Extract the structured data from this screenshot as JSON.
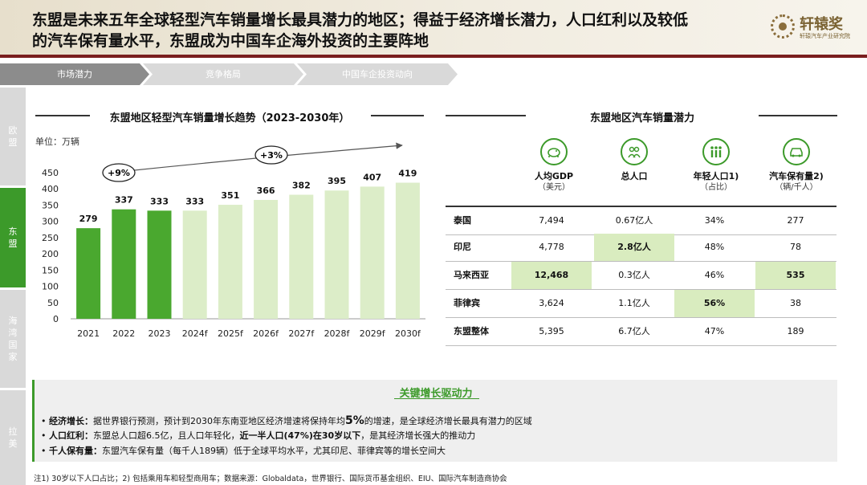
{
  "header": {
    "title_line1": "东盟是未来五年全球轻型汽车销量增长最具潜力的地区；得益于经济增长潜力，人口红利以及较低",
    "title_line2": "的汽车保有量水平，东盟成为中国车企海外投资的主要阵地",
    "logo_name": "轩辕奖",
    "logo_sub": "轩辕汽车产业研究院"
  },
  "tabs": [
    {
      "label": "市场潜力",
      "active": true
    },
    {
      "label": "竞争格局",
      "active": false
    },
    {
      "label": "中国车企投资动向",
      "active": false
    }
  ],
  "sidebar": [
    {
      "label": "欧盟",
      "active": false
    },
    {
      "label": "东盟",
      "active": true
    },
    {
      "label": "海湾国家",
      "active": false
    },
    {
      "label": "拉美",
      "active": false
    }
  ],
  "left_panel": {
    "title": "东盟地区轻型汽车销量增长趋势（2023-2030年）",
    "unit": "单位：万辆",
    "growth_labels": [
      "+9%",
      "+3%"
    ]
  },
  "chart_data": {
    "type": "bar",
    "title": "东盟地区轻型汽车销量增长趋势（2023-2030年）",
    "ylabel": "单位：万辆",
    "categories": [
      "2021",
      "2022",
      "2023",
      "2024f",
      "2025f",
      "2026f",
      "2027f",
      "2028f",
      "2029f",
      "2030f"
    ],
    "values": [
      279,
      337,
      333,
      333,
      351,
      366,
      382,
      395,
      407,
      419
    ],
    "ylim": [
      0,
      450
    ],
    "yticks": [
      0,
      50,
      100,
      150,
      200,
      250,
      300,
      350,
      400,
      450
    ],
    "grid": false,
    "colors": {
      "actual": "#4aa82f",
      "forecast": "#dcedc8"
    }
  },
  "right_panel": {
    "title": "东盟地区汽车销量潜力",
    "columns": [
      {
        "icon": "piggy-bank-icon",
        "label": "人均GDP",
        "sub": "（美元）"
      },
      {
        "icon": "people-icon",
        "label": "总人口",
        "sub": ""
      },
      {
        "icon": "young-people-icon",
        "label": "年轻人口1)",
        "sub": "（占比）"
      },
      {
        "icon": "car-icon",
        "label": "汽车保有量2)",
        "sub": "（辆/千人）"
      }
    ],
    "rows": [
      {
        "name": "泰国",
        "cells": [
          "7,494",
          "0.67亿人",
          "34%",
          "277"
        ],
        "hl": [
          false,
          false,
          false,
          false
        ]
      },
      {
        "name": "印尼",
        "cells": [
          "4,778",
          "2.8亿人",
          "48%",
          "78"
        ],
        "hl": [
          false,
          true,
          false,
          false
        ]
      },
      {
        "name": "马来西亚",
        "cells": [
          "12,468",
          "0.3亿人",
          "46%",
          "535"
        ],
        "hl": [
          true,
          false,
          false,
          true
        ]
      },
      {
        "name": "菲律宾",
        "cells": [
          "3,624",
          "1.1亿人",
          "56%",
          "38"
        ],
        "hl": [
          false,
          false,
          true,
          false
        ]
      },
      {
        "name": "东盟整体",
        "cells": [
          "5,395",
          "6.7亿人",
          "47%",
          "189"
        ],
        "hl": [
          false,
          false,
          false,
          false
        ]
      }
    ]
  },
  "drivers": {
    "title": "关键增长驱动力",
    "items": [
      {
        "label": "经济增长：",
        "pre": "据世界银行预测，预计到2030年东南亚地区经济增速将保持年均",
        "big": "5%",
        "post": "的增速，是全球经济增长最具有潜力的区域"
      },
      {
        "label": "人口红利：",
        "pre": "东盟总人口超6.5亿，且人口年轻化，",
        "big": "近一半人口(47%)在30岁以下",
        "post": "，是其经济增长强大的推动力"
      },
      {
        "label": "千人保有量：",
        "pre": "东盟汽车保有量（每千人189辆）低于全球平均水平，尤其印尼、菲律宾等的增长空间大",
        "big": "",
        "post": ""
      }
    ]
  },
  "footnote": "注1) 30岁以下人口占比；2) 包括乘用车和轻型商用车；数据来源：Globaldata，世界银行、国际货币基金组织、EIU、国际汽车制造商协会",
  "colors": {
    "accent_green": "#3c9a2a",
    "tab_gray": "#8c8c8c",
    "tab_light": "#d9d9d9",
    "header_rule": "#7a1e1e"
  }
}
